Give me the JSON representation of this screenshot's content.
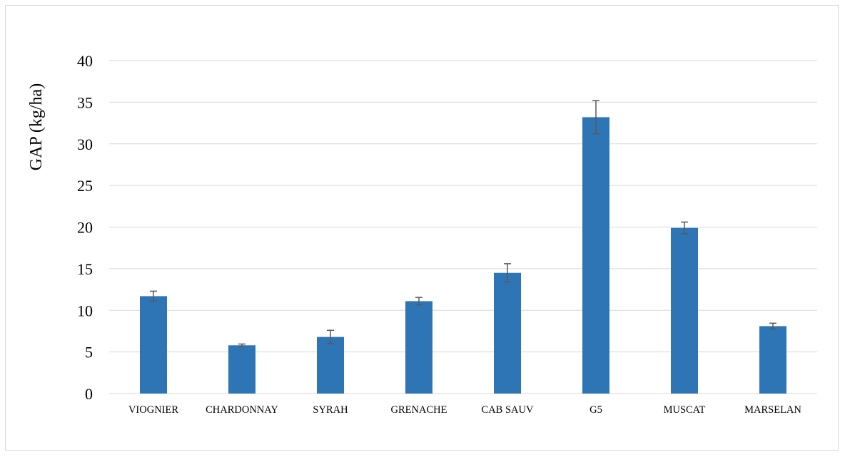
{
  "chart_data": {
    "type": "bar",
    "title": "",
    "xlabel": "",
    "ylabel": "GAP (kg/ha)",
    "ylim": [
      0,
      40
    ],
    "yticks": [
      0,
      5,
      10,
      15,
      20,
      25,
      30,
      35,
      40
    ],
    "grid": true,
    "legend": "none",
    "bar_color": "#2e75b6",
    "error_bar_color": "#595959",
    "gridline_color": "#d9d9d9",
    "categories": [
      "VIOGNIER",
      "CHARDONNAY",
      "SYRAH",
      "GRENACHE",
      "CAB SAUV",
      "G5",
      "MUSCAT",
      "MARSELAN"
    ],
    "values": [
      11.7,
      5.8,
      6.8,
      11.1,
      14.5,
      33.2,
      19.9,
      8.1
    ],
    "errors": [
      0.6,
      0.15,
      0.8,
      0.45,
      1.1,
      2.0,
      0.7,
      0.35
    ]
  }
}
